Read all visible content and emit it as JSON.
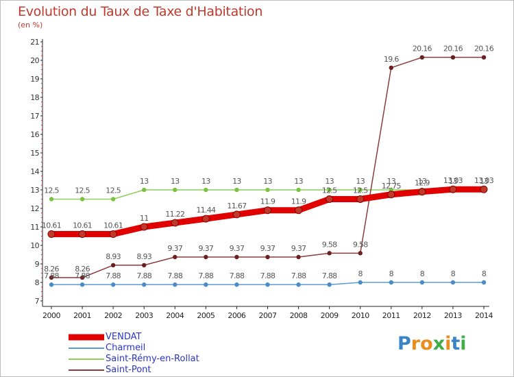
{
  "title": "Evolution du Taux de Taxe d'Habitation",
  "unit_label": "(en %)",
  "logo": {
    "text": "Proxiti",
    "letters": [
      "P",
      "r",
      "o",
      "x",
      "i",
      "t",
      "i"
    ],
    "colors": [
      "#3a84c6",
      "#e88e1f",
      "#e88e1f",
      "#3fae49",
      "#e88e1f",
      "#3a84c6",
      "#3fae49"
    ]
  },
  "chart_data": {
    "type": "line",
    "title": "Evolution du Taux de Taxe d'Habitation",
    "ylabel": "(en %)",
    "xlabel": "",
    "x": [
      "2000",
      "2001",
      "2002",
      "2003",
      "2004",
      "2005",
      "2006",
      "2007",
      "2008",
      "2009",
      "2010",
      "2011",
      "2012",
      "2013",
      "2014"
    ],
    "ylim": [
      7,
      21
    ],
    "yticks": [
      7,
      8,
      9,
      10,
      11,
      12,
      13,
      14,
      15,
      16,
      17,
      18,
      19,
      20,
      21
    ],
    "grid": false,
    "legend_position": "bottom-left",
    "series": [
      {
        "name": "VENDAT",
        "color": "#e00000",
        "marker": "#c0392b",
        "thick": true,
        "values": [
          10.61,
          10.61,
          10.61,
          11,
          11.22,
          11.44,
          11.67,
          11.9,
          11.9,
          12.5,
          12.5,
          12.75,
          12.9,
          13.03,
          13.03
        ],
        "labels": [
          "10.61",
          "10.61",
          "10.61",
          "11",
          "11.22",
          "11.44",
          "11.67",
          "11.9",
          "11.9",
          "12.5",
          "12.5",
          "12.75",
          "12.9",
          "13.03",
          "13.03"
        ]
      },
      {
        "name": "Charmeil",
        "color": "#5b9bd5",
        "marker": "#4a8cc8",
        "thick": false,
        "values": [
          7.88,
          7.88,
          7.88,
          7.88,
          7.88,
          7.88,
          7.88,
          7.88,
          7.88,
          7.88,
          8,
          8,
          8,
          8,
          8
        ],
        "labels": [
          "7.88",
          "7.88",
          "7.88",
          "7.88",
          "7.88",
          "7.88",
          "7.88",
          "7.88",
          "7.88",
          "7.88",
          "8",
          "8",
          "8",
          "8",
          "8"
        ]
      },
      {
        "name": "Saint-Rémy-en-Rollat",
        "color": "#8ccf5a",
        "marker": "#7cc142",
        "thick": false,
        "values": [
          12.5,
          12.5,
          12.5,
          13,
          13,
          13,
          13,
          13,
          13,
          13,
          13,
          13,
          13,
          13,
          13
        ],
        "labels": [
          "12.5",
          "12.5",
          "12.5",
          "13",
          "13",
          "13",
          "13",
          "13",
          "13",
          "13",
          "13",
          "13",
          "13",
          "13",
          "13"
        ]
      },
      {
        "name": "Saint-Pont",
        "color": "#8b3a3a",
        "marker": "#6b1f1f",
        "thick": false,
        "values": [
          8.26,
          8.26,
          8.93,
          8.93,
          9.37,
          9.37,
          9.37,
          9.37,
          9.37,
          9.58,
          9.58,
          19.6,
          20.16,
          20.16,
          20.16
        ],
        "labels": [
          "8.26",
          "8.26",
          "8.93",
          "8.93",
          "9.37",
          "9.37",
          "9.37",
          "9.37",
          "9.37",
          "9.58",
          "9.58",
          "19.6",
          "20.16",
          "20.16",
          "20.16"
        ]
      }
    ]
  }
}
